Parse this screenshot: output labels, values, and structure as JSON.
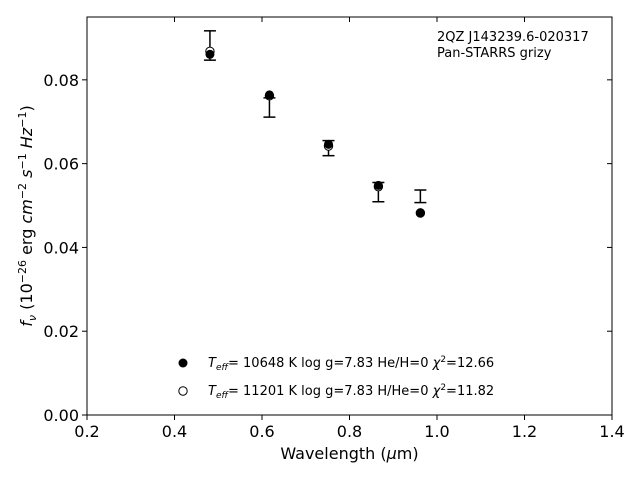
{
  "chart_data": {
    "type": "scatter",
    "title": "",
    "xlabel": "Wavelength (μm)",
    "ylabel": "f_ν (10^-26 erg cm^-2 s^-1 Hz^-1)",
    "xlim": [
      0.2,
      1.4
    ],
    "ylim": [
      0.0,
      0.095
    ],
    "xticks": [
      0.2,
      0.4,
      0.6,
      0.8,
      1.0,
      1.2,
      1.4
    ],
    "xtick_labels": [
      "0.2",
      "0.4",
      "0.6",
      "0.8",
      "1.0",
      "1.2",
      "1.4"
    ],
    "yticks": [
      0.0,
      0.02,
      0.04,
      0.06,
      0.08
    ],
    "ytick_labels": [
      "0.00",
      "0.02",
      "0.04",
      "0.06",
      "0.08"
    ],
    "annotation_lines": [
      "2QZ J143239.6-020317",
      "Pan-STARRS grizy"
    ],
    "legend_placement": "lower-center",
    "grid": false,
    "observed": {
      "x": [
        0.481,
        0.617,
        0.752,
        0.866,
        0.962
      ],
      "y": [
        0.0882,
        0.0734,
        0.0637,
        0.0532,
        0.0522
      ],
      "yerr": [
        0.0035,
        0.0023,
        0.0018,
        0.0023,
        0.0015
      ]
    },
    "series": [
      {
        "name": "T_eff= 10648 K  log g=7.83  He/H=0  χ²=12.66",
        "marker": "filled-circle",
        "x": [
          0.481,
          0.617,
          0.752,
          0.866,
          0.962
        ],
        "y": [
          0.0861,
          0.0764,
          0.0646,
          0.0548,
          0.0483
        ]
      },
      {
        "name": "T_eff= 11201 K  log g=7.83  H/He=0  χ²=11.82",
        "marker": "open-circle",
        "x": [
          0.481,
          0.617,
          0.752,
          0.866,
          0.962
        ],
        "y": [
          0.0868,
          0.0762,
          0.0642,
          0.0545,
          0.0482
        ]
      }
    ],
    "legend": [
      {
        "teff": "10648",
        "logg": "7.83",
        "comp": "He/H=0",
        "chi2": "12.66"
      },
      {
        "teff": "11201",
        "logg": "7.83",
        "comp": "H/He=0",
        "chi2": "11.82"
      }
    ],
    "colors": {
      "marker": "#000000",
      "axes": "#000000",
      "background": "#ffffff"
    }
  }
}
